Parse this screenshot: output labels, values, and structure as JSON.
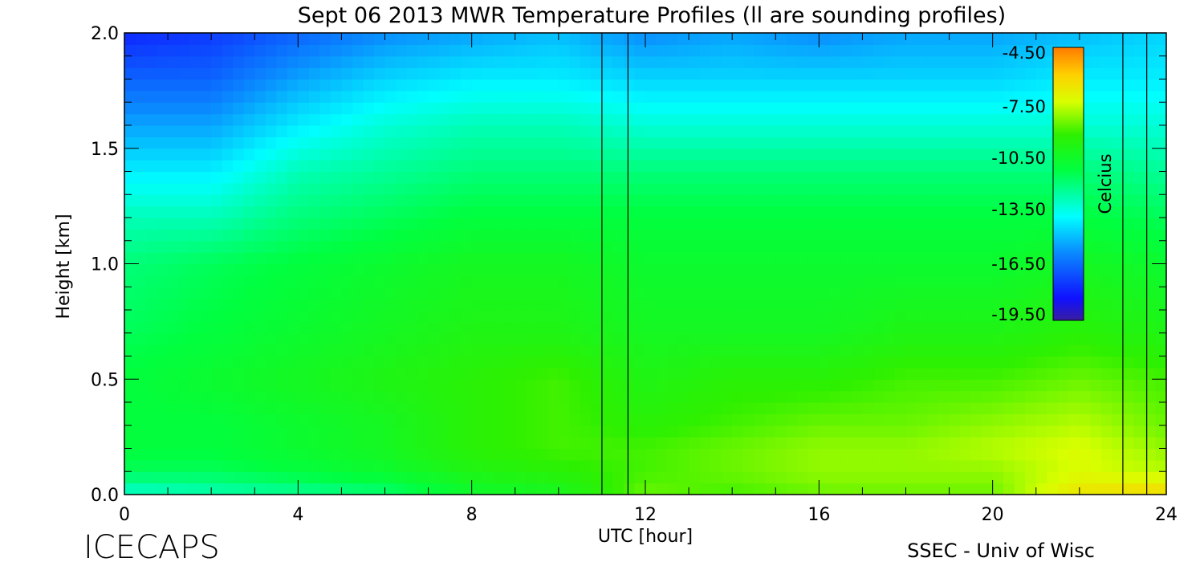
{
  "chart_data": {
    "type": "heatmap",
    "title": "Sept 06 2013 MWR Temperature Profiles (ll are sounding profiles)",
    "xlabel": "UTC [hour]",
    "ylabel": "Height [km]",
    "xlim": [
      0,
      24
    ],
    "ylim": [
      0,
      2.0
    ],
    "x_ticks": [
      "0",
      "4",
      "8",
      "12",
      "16",
      "20",
      "24"
    ],
    "y_ticks": [
      "0.0",
      "0.5",
      "1.0",
      "1.5",
      "2.0"
    ],
    "colorbar": {
      "label": "Celcius",
      "ticks": [
        "-4.50",
        "-7.50",
        "-10.50",
        "-13.50",
        "-16.50",
        "-19.50"
      ],
      "range": [
        -21,
        -3
      ]
    },
    "sounding_lines_utc": [
      11.0,
      11.6,
      23.0,
      23.55
    ],
    "profiles": {
      "heights_km": [
        0.0,
        0.1,
        0.2,
        0.3,
        0.5,
        0.7,
        1.0,
        1.2,
        1.4,
        1.6,
        1.8,
        2.0
      ],
      "times_utc": [
        0,
        2,
        4,
        6,
        8,
        10,
        12,
        14,
        16,
        18,
        20,
        22,
        24
      ],
      "temperature_c": [
        [
          -13.5,
          -11.5,
          -11.0,
          -11.0,
          -11.0,
          -11.5,
          -12.0,
          -13.0,
          -14.5,
          -16.0,
          -17.5,
          -19.0
        ],
        [
          -13.0,
          -11.5,
          -11.0,
          -11.0,
          -10.5,
          -11.0,
          -11.5,
          -13.0,
          -14.5,
          -16.0,
          -17.5,
          -18.5
        ],
        [
          -12.5,
          -11.0,
          -10.5,
          -10.5,
          -10.0,
          -10.5,
          -11.0,
          -12.0,
          -13.0,
          -14.5,
          -16.0,
          -17.5
        ],
        [
          -12.0,
          -10.5,
          -10.0,
          -10.0,
          -9.5,
          -10.0,
          -10.5,
          -11.5,
          -12.5,
          -13.5,
          -15.0,
          -16.5
        ],
        [
          -10.5,
          -9.5,
          -9.0,
          -9.0,
          -9.0,
          -9.5,
          -10.0,
          -11.0,
          -12.0,
          -13.0,
          -14.5,
          -16.0
        ],
        [
          -10.0,
          -9.0,
          -8.5,
          -8.5,
          -8.5,
          -9.5,
          -10.0,
          -11.0,
          -12.0,
          -13.0,
          -14.5,
          -15.5
        ],
        [
          -8.0,
          -8.5,
          -8.5,
          -9.0,
          -9.5,
          -10.0,
          -10.5,
          -11.0,
          -12.0,
          -13.5,
          -15.0,
          -16.5
        ],
        [
          -8.5,
          -8.0,
          -8.0,
          -8.5,
          -9.0,
          -10.0,
          -10.5,
          -11.0,
          -12.0,
          -13.5,
          -15.0,
          -16.0
        ],
        [
          -8.0,
          -7.5,
          -7.5,
          -8.0,
          -9.0,
          -10.0,
          -10.5,
          -11.0,
          -12.0,
          -13.5,
          -15.0,
          -16.5
        ],
        [
          -8.0,
          -7.5,
          -7.5,
          -8.0,
          -8.5,
          -9.5,
          -10.5,
          -11.0,
          -12.0,
          -13.5,
          -15.0,
          -16.0
        ],
        [
          -8.0,
          -7.5,
          -7.0,
          -7.5,
          -8.5,
          -9.5,
          -10.5,
          -11.0,
          -12.0,
          -13.5,
          -15.0,
          -16.0
        ],
        [
          -5.5,
          -6.5,
          -6.5,
          -7.0,
          -8.0,
          -9.0,
          -10.0,
          -11.0,
          -12.0,
          -13.5,
          -14.5,
          -15.5
        ],
        [
          -5.0,
          -7.0,
          -7.5,
          -8.0,
          -8.5,
          -9.5,
          -10.5,
          -11.5,
          -12.5,
          -13.5,
          -14.5,
          -15.0
        ]
      ]
    }
  },
  "branding": {
    "left": "ICECAPS",
    "right": "SSEC - Univ of Wisc"
  }
}
